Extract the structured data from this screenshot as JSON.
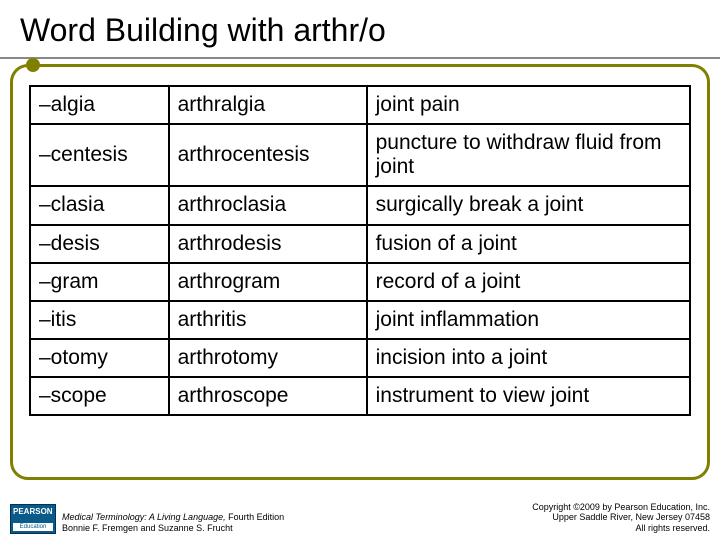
{
  "slide": {
    "title": "Word Building with arthr/o",
    "accent_color": "#808000",
    "border_color": "#888888",
    "background": "#ffffff"
  },
  "table": {
    "rows": [
      {
        "suffix": "–algia",
        "word": "arthralgia",
        "definition": "joint pain"
      },
      {
        "suffix": "–centesis",
        "word": "arthrocentesis",
        "definition": "puncture to withdraw fluid from joint"
      },
      {
        "suffix": "–clasia",
        "word": "arthroclasia",
        "definition": "surgically break a joint"
      },
      {
        "suffix": "–desis",
        "word": "arthrodesis",
        "definition": "fusion of a joint"
      },
      {
        "suffix": "–gram",
        "word": "arthrogram",
        "definition": "record of a joint"
      },
      {
        "suffix": "–itis",
        "word": "arthritis",
        "definition": "joint inflammation"
      },
      {
        "suffix": "–otomy",
        "word": "arthrotomy",
        "definition": "incision into a joint"
      },
      {
        "suffix": "–scope",
        "word": "arthroscope",
        "definition": "instrument to view joint"
      }
    ],
    "cell_border_color": "#000000",
    "font_size": 21
  },
  "footer": {
    "logo_publisher": "PEARSON",
    "logo_sub": "Education",
    "book_title": "Medical Terminology: A Living Language,",
    "book_edition": " Fourth Edition",
    "authors": "Bonnie F. Fremgen and Suzanne S. Frucht",
    "copyright_line1": "Copyright ©2009 by Pearson Education, Inc.",
    "copyright_line2": "Upper Saddle River, New Jersey 07458",
    "copyright_line3": "All rights reserved."
  }
}
